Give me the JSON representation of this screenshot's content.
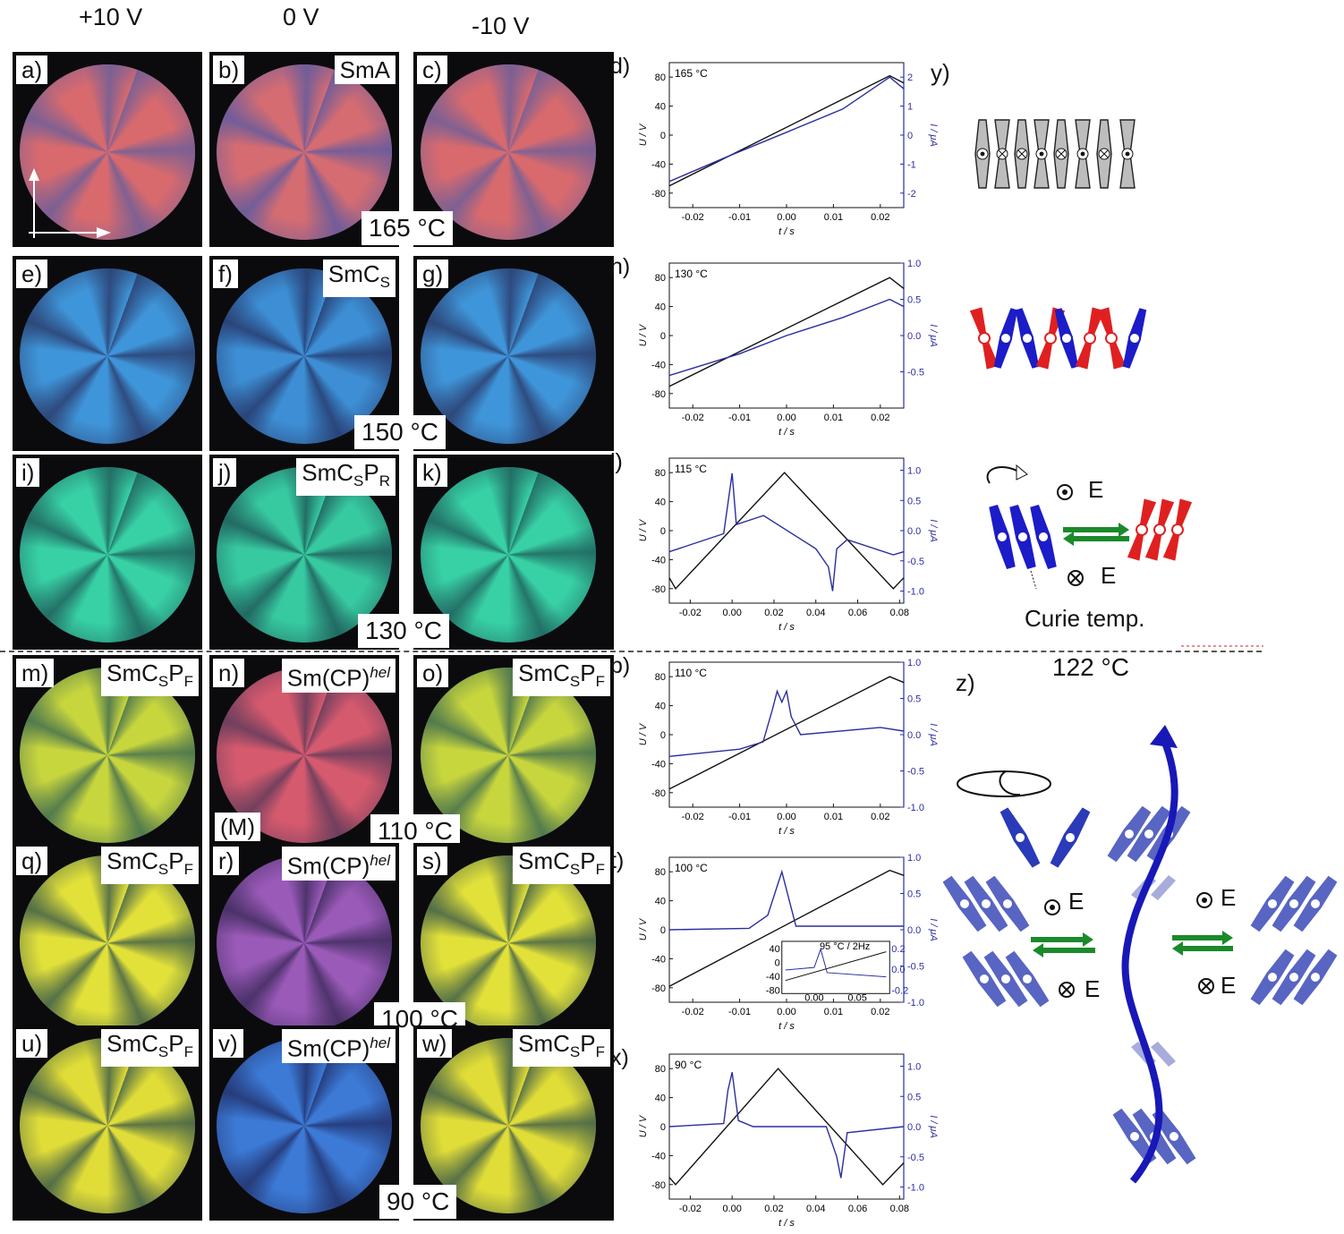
{
  "columns": [
    "+10 V",
    "0 V",
    "-10 V"
  ],
  "rows": [
    {
      "panels": [
        {
          "letter": "a)",
          "phase": "",
          "c1": "#d86a6e",
          "c2": "#6a5e9a"
        },
        {
          "letter": "b)",
          "phase": "SmA",
          "c1": "#d46c72",
          "c2": "#5e5aa0"
        },
        {
          "letter": "c)",
          "phase": "",
          "c1": "#d86a6e",
          "c2": "#6a5e9a"
        }
      ],
      "temp": "165 °C"
    },
    {
      "panels": [
        {
          "letter": "e)",
          "phase": "",
          "c1": "#3f95d9",
          "c2": "#2a3a6a"
        },
        {
          "letter": "f)",
          "phase": "SmCs",
          "c1": "#3d8ed4",
          "c2": "#26376a"
        },
        {
          "letter": "g)",
          "phase": "",
          "c1": "#3f95d9",
          "c2": "#2a3a6a"
        }
      ],
      "temp": "150 °C"
    },
    {
      "panels": [
        {
          "letter": "i)",
          "phase": "",
          "c1": "#38d1a6",
          "c2": "#1f5e5a"
        },
        {
          "letter": "j)",
          "phase": "SmCsPR",
          "c1": "#37c9a0",
          "c2": "#1e5858"
        },
        {
          "letter": "k)",
          "phase": "",
          "c1": "#38d1a6",
          "c2": "#1f5e5a"
        }
      ],
      "temp": "130 °C"
    },
    {
      "panels": [
        {
          "letter": "m)",
          "phase": "SmCsPF",
          "c1": "#c8d63e",
          "c2": "#3e6a50"
        },
        {
          "letter": "n)",
          "phase": "Sm(CP)hel",
          "c1": "#d65a6e",
          "c2": "#5c3a5a",
          "extra": "(M)"
        },
        {
          "letter": "o)",
          "phase": "SmCsPF",
          "c1": "#c8d63e",
          "c2": "#3e6a50"
        }
      ],
      "temp": "110 °C"
    },
    {
      "panels": [
        {
          "letter": "q)",
          "phase": "SmCsPF",
          "c1": "#e2e13a",
          "c2": "#3a5a4a"
        },
        {
          "letter": "r)",
          "phase": "Sm(CP)hel",
          "c1": "#9a5ab8",
          "c2": "#3c2a5a"
        },
        {
          "letter": "s)",
          "phase": "SmCsPF",
          "c1": "#e2e13a",
          "c2": "#3a5a4a"
        }
      ],
      "temp": "100 °C"
    },
    {
      "panels": [
        {
          "letter": "u)",
          "phase": "SmCsPF",
          "c1": "#e0dc38",
          "c2": "#3a5a4a"
        },
        {
          "letter": "v)",
          "phase": "Sm(CP)hel",
          "c1": "#3c7ad6",
          "c2": "#22306a"
        },
        {
          "letter": "w)",
          "phase": "SmCsPF",
          "c1": "#e0dc38",
          "c2": "#3a5a4a"
        }
      ],
      "temp": "90 °C"
    }
  ],
  "chart_data": [
    {
      "type": "line",
      "letter": "d)",
      "temp": "165 °C",
      "xlabel": "t / s",
      "ylabel": "U / V",
      "y2label": "I / μA",
      "xticks": [
        "-0.02",
        "-0.01",
        "0.00",
        "0.01",
        "0.02"
      ],
      "yticks": [
        "80",
        "40",
        "0",
        "-40",
        "-80"
      ],
      "y2ticks": [
        "2",
        "1",
        "0",
        "-1",
        "-2"
      ],
      "xlim": [
        -0.025,
        0.025
      ],
      "ylim": [
        -100,
        100
      ],
      "y2lim": [
        -2.5,
        2.5
      ],
      "series": [
        {
          "color": "#111111",
          "x": [
            -0.025,
            0.022,
            0.025
          ],
          "y": [
            -70,
            82,
            72
          ]
        },
        {
          "color": "#2a2ea0",
          "x": [
            -0.025,
            -0.012,
            0.0,
            0.012,
            0.022,
            0.025
          ],
          "y2": [
            -1.6,
            -0.7,
            0.1,
            0.9,
            2.0,
            1.6
          ]
        }
      ]
    },
    {
      "type": "line",
      "letter": "h)",
      "temp": "130 °C",
      "xlabel": "t / s",
      "ylabel": "U / V",
      "y2label": "I / μA",
      "xticks": [
        "-0.02",
        "-0.01",
        "0.00",
        "0.01",
        "0.02"
      ],
      "yticks": [
        "80",
        "40",
        "0",
        "-40",
        "-80"
      ],
      "y2ticks": [
        "1.0",
        "0.5",
        "0.0",
        "-0.5"
      ],
      "xlim": [
        -0.025,
        0.025
      ],
      "ylim": [
        -100,
        100
      ],
      "y2lim": [
        -1.0,
        1.0
      ],
      "series": [
        {
          "color": "#111111",
          "x": [
            -0.025,
            0.022,
            0.025
          ],
          "y": [
            -70,
            80,
            65
          ]
        },
        {
          "color": "#2a2ea0",
          "x": [
            -0.025,
            -0.01,
            0.0,
            0.012,
            0.022,
            0.025
          ],
          "y2": [
            -0.55,
            -0.25,
            0.0,
            0.25,
            0.5,
            0.4
          ]
        }
      ]
    },
    {
      "type": "line",
      "letter": "l)",
      "temp": "115 °C",
      "xlabel": "t / s",
      "ylabel": "U / V",
      "y2label": "I / μA",
      "xticks": [
        "-0.02",
        "0.00",
        "0.02",
        "0.04",
        "0.06",
        "0.08"
      ],
      "yticks": [
        "80",
        "40",
        "0",
        "-40",
        "-80"
      ],
      "y2ticks": [
        "1.0",
        "0.5",
        "0.0",
        "-0.5",
        "-1.0"
      ],
      "xlim": [
        -0.03,
        0.082
      ],
      "ylim": [
        -100,
        100
      ],
      "y2lim": [
        -1.2,
        1.2
      ],
      "series": [
        {
          "color": "#111111",
          "x": [
            -0.03,
            -0.027,
            0.025,
            0.077,
            0.082
          ],
          "y": [
            -65,
            -80,
            80,
            -80,
            -65
          ]
        },
        {
          "color": "#2a2ea0",
          "x": [
            -0.03,
            -0.004,
            -0.002,
            0.0,
            0.002,
            0.015,
            0.04,
            0.046,
            0.048,
            0.05,
            0.055,
            0.077,
            0.082
          ],
          "y2": [
            -0.35,
            -0.05,
            0.45,
            0.95,
            0.1,
            0.25,
            -0.3,
            -0.6,
            -1.0,
            -0.3,
            -0.15,
            -0.4,
            -0.35
          ]
        }
      ]
    },
    {
      "type": "line",
      "letter": "p)",
      "temp": "110 °C",
      "xlabel": "t / s",
      "ylabel": "U / V",
      "y2label": "I / μA",
      "xticks": [
        "-0.02",
        "-0.01",
        "0.00",
        "0.01",
        "0.02"
      ],
      "yticks": [
        "80",
        "40",
        "0",
        "-40",
        "-80"
      ],
      "y2ticks": [
        "1.0",
        "0.5",
        "0.0",
        "-0.5",
        "-1.0"
      ],
      "xlim": [
        -0.025,
        0.025
      ],
      "ylim": [
        -100,
        100
      ],
      "y2lim": [
        -1.0,
        1.0
      ],
      "series": [
        {
          "color": "#111111",
          "x": [
            -0.025,
            0.022,
            0.025
          ],
          "y": [
            -75,
            80,
            72
          ]
        },
        {
          "color": "#2a2ea0",
          "x": [
            -0.025,
            -0.01,
            -0.005,
            -0.003,
            -0.002,
            -0.001,
            0.0,
            0.001,
            0.003,
            0.02,
            0.025
          ],
          "y2": [
            -0.3,
            -0.2,
            -0.1,
            0.35,
            0.6,
            0.45,
            0.6,
            0.25,
            0.0,
            0.1,
            0.05
          ]
        }
      ]
    },
    {
      "type": "line",
      "letter": "t)",
      "temp": "100 °C",
      "xlabel": "t / s",
      "ylabel": "U / V",
      "y2label": "I / μA",
      "xticks": [
        "-0.02",
        "-0.01",
        "0.00",
        "0.01",
        "0.02"
      ],
      "yticks": [
        "80",
        "40",
        "0",
        "-40",
        "-80"
      ],
      "y2ticks": [
        "1.0",
        "0.5",
        "0.0",
        "-0.5",
        "-1.0"
      ],
      "xlim": [
        -0.025,
        0.025
      ],
      "ylim": [
        -100,
        100
      ],
      "y2lim": [
        -1.0,
        1.0
      ],
      "series": [
        {
          "color": "#111111",
          "x": [
            -0.025,
            0.022,
            0.025
          ],
          "y": [
            -78,
            82,
            75
          ]
        },
        {
          "color": "#2a2ea0",
          "x": [
            -0.025,
            -0.008,
            -0.004,
            -0.002,
            -0.001,
            0.0,
            0.002,
            0.025
          ],
          "y2": [
            0.0,
            0.02,
            0.2,
            0.6,
            0.8,
            0.55,
            0.05,
            0.05
          ]
        }
      ],
      "inset": {
        "title": "95 °C / 2Hz",
        "xticks": [
          "0.00",
          "0.05"
        ],
        "yticks": [
          "40",
          "0",
          "-40",
          "-80"
        ],
        "y2ticks": [
          "0.2",
          "0.0",
          "-0.2"
        ]
      }
    },
    {
      "type": "line",
      "letter": "x)",
      "temp": "90 °C",
      "xlabel": "t / s",
      "ylabel": "U / V",
      "y2label": "I / μA",
      "xticks": [
        "-0.02",
        "0.00",
        "0.02",
        "0.04",
        "0.06",
        "0.08"
      ],
      "yticks": [
        "80",
        "40",
        "0",
        "-40",
        "-80"
      ],
      "y2ticks": [
        "1.0",
        "0.5",
        "0.0",
        "-0.5",
        "-1.0"
      ],
      "xlim": [
        -0.03,
        0.082
      ],
      "ylim": [
        -100,
        100
      ],
      "y2lim": [
        -1.2,
        1.2
      ],
      "series": [
        {
          "color": "#111111",
          "x": [
            -0.03,
            -0.027,
            0.022,
            0.072,
            0.082
          ],
          "y": [
            -70,
            -80,
            80,
            -80,
            -50
          ]
        },
        {
          "color": "#2a2ea0",
          "x": [
            -0.03,
            -0.004,
            -0.002,
            0.0,
            0.003,
            0.01,
            0.045,
            0.048,
            0.05,
            0.052,
            0.055,
            0.082
          ],
          "y2": [
            0.0,
            0.05,
            0.6,
            0.9,
            0.1,
            0.0,
            0.0,
            -0.3,
            -0.5,
            -0.85,
            -0.1,
            0.0
          ]
        }
      ]
    }
  ],
  "right": {
    "y_label": "y)",
    "z_label": "z)",
    "e_up": "E",
    "e_down": "E",
    "curie": "Curie temp.",
    "transition": "122 °C"
  }
}
